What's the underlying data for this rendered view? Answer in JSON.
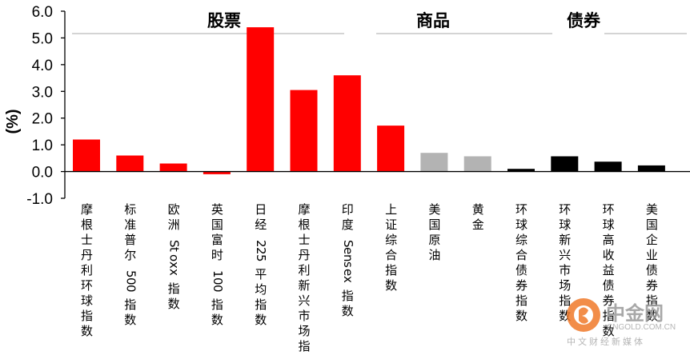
{
  "chart_data": {
    "type": "bar",
    "ylabel": "(%)",
    "ylim": [
      -1.0,
      6.0
    ],
    "yticks": [
      "6.0",
      "5.0",
      "4.0",
      "3.0",
      "2.0",
      "1.0",
      "0.0",
      "-1.0"
    ],
    "groups": [
      "股票",
      "商品",
      "债券"
    ],
    "categories": [
      "摩根士丹利环球指数",
      "标准普尔 500 指数",
      "欧洲 Stoxx 指数",
      "英国富时 100 指数",
      "日经 225 平均指数",
      "摩根士丹利新兴市场指数",
      "印度 Sensex 指数",
      "上证综合指数",
      "美国原油",
      "黄金",
      "环球综合债券指数",
      "环球新兴市场指数",
      "环球高收益债券指数",
      "美国企业债券指数"
    ],
    "values": [
      1.2,
      0.6,
      0.3,
      -0.1,
      5.4,
      3.05,
      3.6,
      1.72,
      0.7,
      0.57,
      0.1,
      0.57,
      0.37,
      0.23
    ],
    "category_group": [
      "股票",
      "股票",
      "股票",
      "股票",
      "股票",
      "股票",
      "股票",
      "股票",
      "商品",
      "商品",
      "债券",
      "债券",
      "债券",
      "债券"
    ],
    "colors": {
      "股票": "#ff0000",
      "商品": "#b3b3b3",
      "债券": "#000000"
    },
    "grid": false
  },
  "watermark": {
    "name": "中金网",
    "domain": "CNGOLD.COM.CN",
    "tagline": "中文财经新媒体",
    "logo_color": "#f07a2a"
  }
}
